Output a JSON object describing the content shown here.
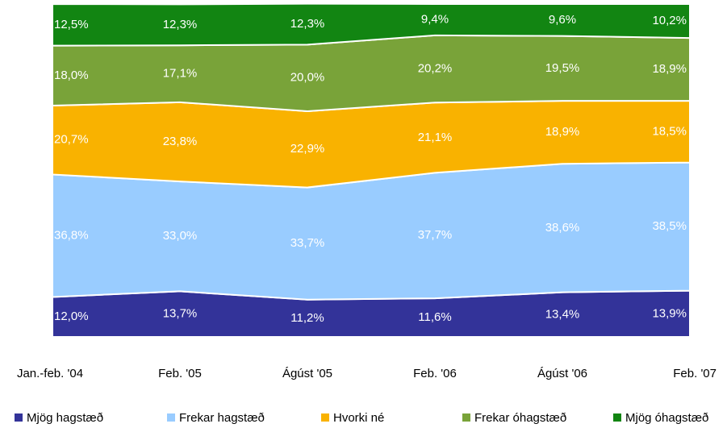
{
  "chart_data": {
    "type": "area",
    "stacked": true,
    "categories": [
      "Jan.-feb. '04",
      "Feb. '05",
      "Ágúst '05",
      "Feb. '06",
      "Ágúst '06",
      "Feb. '07"
    ],
    "ylim": [
      0,
      100
    ],
    "series": [
      {
        "name": "Mjög hagstæð",
        "color": "#333399",
        "values": [
          12.0,
          13.7,
          11.2,
          11.6,
          13.4,
          13.9
        ],
        "value_labels": [
          "12,0%",
          "13,7%",
          "11,2%",
          "11,6%",
          "13,4%",
          "13,9%"
        ]
      },
      {
        "name": "Frekar hagstæð",
        "color": "#99ccff",
        "values": [
          36.8,
          33.0,
          33.7,
          37.7,
          38.6,
          38.5
        ],
        "value_labels": [
          "36,8%",
          "33,0%",
          "33,7%",
          "37,7%",
          "38,6%",
          "38,5%"
        ]
      },
      {
        "name": "Hvorki né",
        "color": "#f9b200",
        "values": [
          20.7,
          23.8,
          22.9,
          21.1,
          18.9,
          18.5
        ],
        "value_labels": [
          "20,7%",
          "23,8%",
          "22,9%",
          "21,1%",
          "18,9%",
          "18,5%"
        ]
      },
      {
        "name": "Frekar óhagstæð",
        "color": "#79a339",
        "values": [
          18.0,
          17.1,
          20.0,
          20.2,
          19.5,
          18.9
        ],
        "value_labels": [
          "18,0%",
          "17,1%",
          "20,0%",
          "20,2%",
          "19,5%",
          "18,9%"
        ]
      },
      {
        "name": "Mjög óhagstæð",
        "color": "#128512",
        "values": [
          12.5,
          12.3,
          12.3,
          9.4,
          9.6,
          10.2
        ],
        "value_labels": [
          "12,5%",
          "12,3%",
          "12,3%",
          "9,4%",
          "9,6%",
          "10,2%"
        ]
      }
    ]
  }
}
